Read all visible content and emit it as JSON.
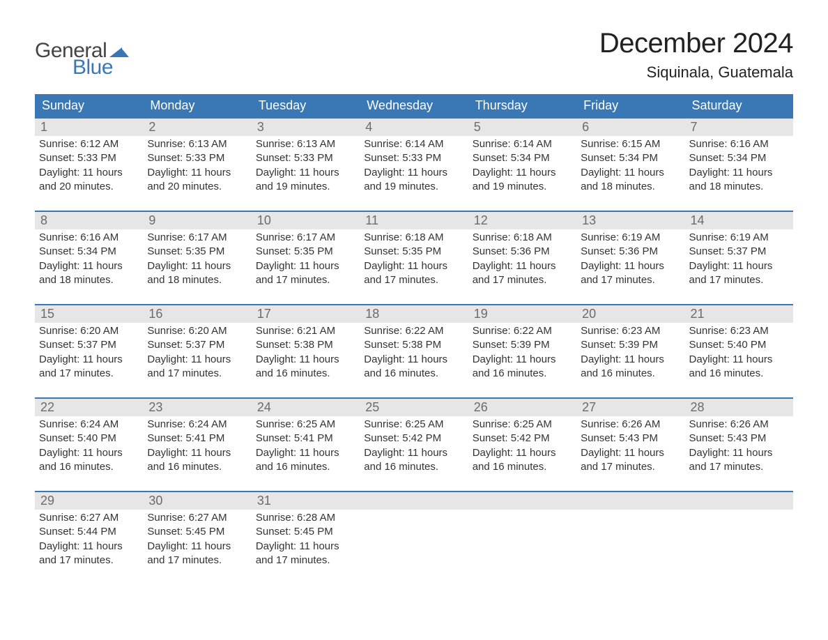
{
  "brand": {
    "text1": "General",
    "text2": "Blue",
    "text1_color": "#444444",
    "text2_color": "#3a78b5",
    "mark_color": "#3a78b5"
  },
  "header": {
    "title": "December 2024",
    "location": "Siquinala, Guatemala",
    "title_fontsize": 40,
    "location_fontsize": 22,
    "title_color": "#222222"
  },
  "calendar": {
    "header_bg": "#3a78b5",
    "header_text_color": "#ffffff",
    "day_strip_bg": "#e6e6e6",
    "row_border_color": "#3a78b5",
    "text_color": "#333333",
    "days_of_week": [
      "Sunday",
      "Monday",
      "Tuesday",
      "Wednesday",
      "Thursday",
      "Friday",
      "Saturday"
    ],
    "weeks": [
      [
        {
          "n": "1",
          "sunrise": "Sunrise: 6:12 AM",
          "sunset": "Sunset: 5:33 PM",
          "daylight1": "Daylight: 11 hours",
          "daylight2": "and 20 minutes."
        },
        {
          "n": "2",
          "sunrise": "Sunrise: 6:13 AM",
          "sunset": "Sunset: 5:33 PM",
          "daylight1": "Daylight: 11 hours",
          "daylight2": "and 20 minutes."
        },
        {
          "n": "3",
          "sunrise": "Sunrise: 6:13 AM",
          "sunset": "Sunset: 5:33 PM",
          "daylight1": "Daylight: 11 hours",
          "daylight2": "and 19 minutes."
        },
        {
          "n": "4",
          "sunrise": "Sunrise: 6:14 AM",
          "sunset": "Sunset: 5:33 PM",
          "daylight1": "Daylight: 11 hours",
          "daylight2": "and 19 minutes."
        },
        {
          "n": "5",
          "sunrise": "Sunrise: 6:14 AM",
          "sunset": "Sunset: 5:34 PM",
          "daylight1": "Daylight: 11 hours",
          "daylight2": "and 19 minutes."
        },
        {
          "n": "6",
          "sunrise": "Sunrise: 6:15 AM",
          "sunset": "Sunset: 5:34 PM",
          "daylight1": "Daylight: 11 hours",
          "daylight2": "and 18 minutes."
        },
        {
          "n": "7",
          "sunrise": "Sunrise: 6:16 AM",
          "sunset": "Sunset: 5:34 PM",
          "daylight1": "Daylight: 11 hours",
          "daylight2": "and 18 minutes."
        }
      ],
      [
        {
          "n": "8",
          "sunrise": "Sunrise: 6:16 AM",
          "sunset": "Sunset: 5:34 PM",
          "daylight1": "Daylight: 11 hours",
          "daylight2": "and 18 minutes."
        },
        {
          "n": "9",
          "sunrise": "Sunrise: 6:17 AM",
          "sunset": "Sunset: 5:35 PM",
          "daylight1": "Daylight: 11 hours",
          "daylight2": "and 18 minutes."
        },
        {
          "n": "10",
          "sunrise": "Sunrise: 6:17 AM",
          "sunset": "Sunset: 5:35 PM",
          "daylight1": "Daylight: 11 hours",
          "daylight2": "and 17 minutes."
        },
        {
          "n": "11",
          "sunrise": "Sunrise: 6:18 AM",
          "sunset": "Sunset: 5:35 PM",
          "daylight1": "Daylight: 11 hours",
          "daylight2": "and 17 minutes."
        },
        {
          "n": "12",
          "sunrise": "Sunrise: 6:18 AM",
          "sunset": "Sunset: 5:36 PM",
          "daylight1": "Daylight: 11 hours",
          "daylight2": "and 17 minutes."
        },
        {
          "n": "13",
          "sunrise": "Sunrise: 6:19 AM",
          "sunset": "Sunset: 5:36 PM",
          "daylight1": "Daylight: 11 hours",
          "daylight2": "and 17 minutes."
        },
        {
          "n": "14",
          "sunrise": "Sunrise: 6:19 AM",
          "sunset": "Sunset: 5:37 PM",
          "daylight1": "Daylight: 11 hours",
          "daylight2": "and 17 minutes."
        }
      ],
      [
        {
          "n": "15",
          "sunrise": "Sunrise: 6:20 AM",
          "sunset": "Sunset: 5:37 PM",
          "daylight1": "Daylight: 11 hours",
          "daylight2": "and 17 minutes."
        },
        {
          "n": "16",
          "sunrise": "Sunrise: 6:20 AM",
          "sunset": "Sunset: 5:37 PM",
          "daylight1": "Daylight: 11 hours",
          "daylight2": "and 17 minutes."
        },
        {
          "n": "17",
          "sunrise": "Sunrise: 6:21 AM",
          "sunset": "Sunset: 5:38 PM",
          "daylight1": "Daylight: 11 hours",
          "daylight2": "and 16 minutes."
        },
        {
          "n": "18",
          "sunrise": "Sunrise: 6:22 AM",
          "sunset": "Sunset: 5:38 PM",
          "daylight1": "Daylight: 11 hours",
          "daylight2": "and 16 minutes."
        },
        {
          "n": "19",
          "sunrise": "Sunrise: 6:22 AM",
          "sunset": "Sunset: 5:39 PM",
          "daylight1": "Daylight: 11 hours",
          "daylight2": "and 16 minutes."
        },
        {
          "n": "20",
          "sunrise": "Sunrise: 6:23 AM",
          "sunset": "Sunset: 5:39 PM",
          "daylight1": "Daylight: 11 hours",
          "daylight2": "and 16 minutes."
        },
        {
          "n": "21",
          "sunrise": "Sunrise: 6:23 AM",
          "sunset": "Sunset: 5:40 PM",
          "daylight1": "Daylight: 11 hours",
          "daylight2": "and 16 minutes."
        }
      ],
      [
        {
          "n": "22",
          "sunrise": "Sunrise: 6:24 AM",
          "sunset": "Sunset: 5:40 PM",
          "daylight1": "Daylight: 11 hours",
          "daylight2": "and 16 minutes."
        },
        {
          "n": "23",
          "sunrise": "Sunrise: 6:24 AM",
          "sunset": "Sunset: 5:41 PM",
          "daylight1": "Daylight: 11 hours",
          "daylight2": "and 16 minutes."
        },
        {
          "n": "24",
          "sunrise": "Sunrise: 6:25 AM",
          "sunset": "Sunset: 5:41 PM",
          "daylight1": "Daylight: 11 hours",
          "daylight2": "and 16 minutes."
        },
        {
          "n": "25",
          "sunrise": "Sunrise: 6:25 AM",
          "sunset": "Sunset: 5:42 PM",
          "daylight1": "Daylight: 11 hours",
          "daylight2": "and 16 minutes."
        },
        {
          "n": "26",
          "sunrise": "Sunrise: 6:25 AM",
          "sunset": "Sunset: 5:42 PM",
          "daylight1": "Daylight: 11 hours",
          "daylight2": "and 16 minutes."
        },
        {
          "n": "27",
          "sunrise": "Sunrise: 6:26 AM",
          "sunset": "Sunset: 5:43 PM",
          "daylight1": "Daylight: 11 hours",
          "daylight2": "and 17 minutes."
        },
        {
          "n": "28",
          "sunrise": "Sunrise: 6:26 AM",
          "sunset": "Sunset: 5:43 PM",
          "daylight1": "Daylight: 11 hours",
          "daylight2": "and 17 minutes."
        }
      ],
      [
        {
          "n": "29",
          "sunrise": "Sunrise: 6:27 AM",
          "sunset": "Sunset: 5:44 PM",
          "daylight1": "Daylight: 11 hours",
          "daylight2": "and 17 minutes."
        },
        {
          "n": "30",
          "sunrise": "Sunrise: 6:27 AM",
          "sunset": "Sunset: 5:45 PM",
          "daylight1": "Daylight: 11 hours",
          "daylight2": "and 17 minutes."
        },
        {
          "n": "31",
          "sunrise": "Sunrise: 6:28 AM",
          "sunset": "Sunset: 5:45 PM",
          "daylight1": "Daylight: 11 hours",
          "daylight2": "and 17 minutes."
        },
        null,
        null,
        null,
        null
      ]
    ]
  }
}
